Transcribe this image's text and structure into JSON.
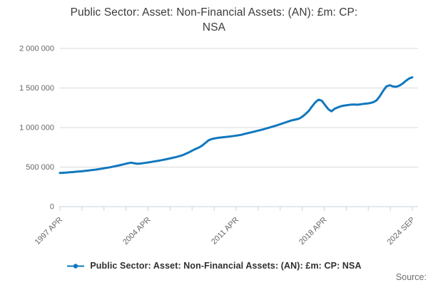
{
  "title": {
    "text": "Public Sector: Asset: Non-Financial Assets: (AN): £m: CP: NSA",
    "lines": [
      "Public Sector: Asset: Non-Financial Assets: (AN): £m: CP:",
      "NSA"
    ]
  },
  "legend": {
    "label": "Public Sector: Asset: Non-Financial Assets: (AN): £m: CP: NSA",
    "marker": "line-with-dot"
  },
  "source": {
    "label": "Source:"
  },
  "colors": {
    "line": "#1178be",
    "grid": "#d9d9d9",
    "axis": "#c6d2e0",
    "tick_text": "#666666",
    "title_text": "#3b3b3b",
    "legend_text": "#2f2f2f",
    "source_text": "#6e6e6e",
    "background": "#ffffff"
  },
  "chart_data": {
    "type": "line",
    "title": "Public Sector: Asset: Non-Financial Assets: (AN): £m: CP: NSA",
    "grid": "horizontal",
    "legend_position": "bottom",
    "x_axis": {
      "tick_labels": [
        "1997 APR",
        "2004 APR",
        "2011 APR",
        "2018 APR",
        "2024 SEP"
      ],
      "minor_tick_count": 17,
      "label_rotation_deg": -45
    },
    "y_axis": {
      "ticks": [
        0,
        500000,
        1000000,
        1500000,
        2000000
      ],
      "tick_labels": [
        "0",
        "500 000",
        "1 000 000",
        "1 500 000",
        "2 000 000"
      ],
      "range": [
        0,
        2000000
      ],
      "unit": "£m"
    },
    "series": [
      {
        "name": "Public Sector: Asset: Non-Financial Assets: (AN): £m: CP: NSA",
        "start": "1997 APR",
        "end": "2024 SEP",
        "frequency": "quarterly",
        "values": [
          425000,
          428000,
          431000,
          434000,
          437000,
          441000,
          445000,
          449000,
          453000,
          458000,
          463000,
          468000,
          474000,
          480000,
          487000,
          494000,
          502000,
          510000,
          519000,
          528000,
          538000,
          549000,
          556000,
          549000,
          541000,
          545000,
          551000,
          557000,
          563000,
          570000,
          577000,
          584000,
          592000,
          600000,
          609000,
          618000,
          628000,
          639000,
          651000,
          670000,
          688000,
          710000,
          730000,
          748000,
          772000,
          805000,
          840000,
          855000,
          864000,
          870000,
          875000,
          879000,
          884000,
          889000,
          895000,
          901000,
          907000,
          918000,
          928000,
          938000,
          948000,
          958000,
          968000,
          978000,
          990000,
          1002000,
          1014000,
          1026000,
          1040000,
          1054000,
          1068000,
          1082000,
          1094000,
          1103000,
          1113000,
          1138000,
          1172000,
          1212000,
          1268000,
          1318000,
          1352000,
          1340000,
          1286000,
          1232000,
          1205000,
          1238000,
          1256000,
          1270000,
          1278000,
          1284000,
          1289000,
          1292000,
          1288000,
          1294000,
          1300000,
          1304000,
          1310000,
          1322000,
          1345000,
          1400000,
          1465000,
          1520000,
          1535000,
          1520000,
          1515000,
          1530000,
          1555000,
          1590000,
          1620000,
          1635000
        ]
      }
    ]
  }
}
